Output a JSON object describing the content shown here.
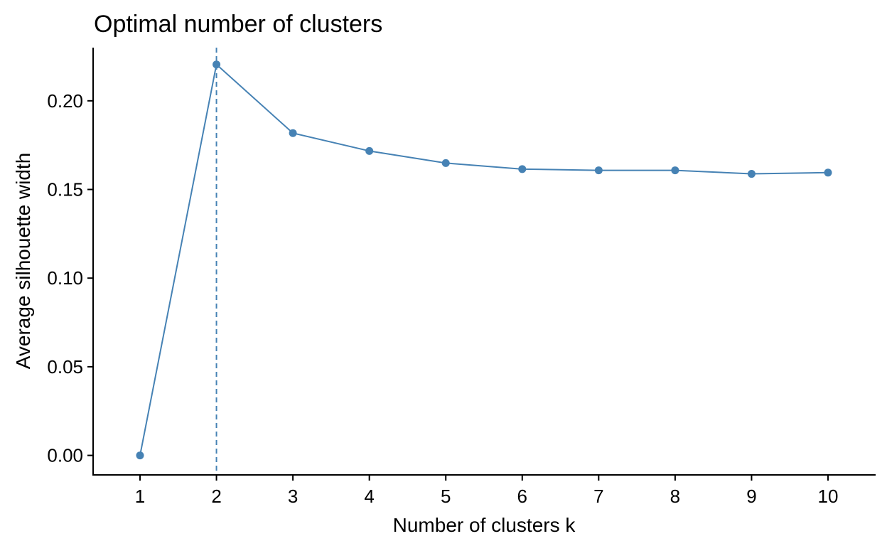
{
  "chart_data": {
    "type": "line",
    "title": "Optimal number of clusters",
    "xlabel": "Number of clusters k",
    "ylabel": "Average silhouette width",
    "categories": [
      "1",
      "2",
      "3",
      "4",
      "5",
      "6",
      "7",
      "8",
      "9",
      "10"
    ],
    "series": [
      {
        "values": [
          0.0,
          0.2205,
          0.1818,
          0.1717,
          0.1649,
          0.1615,
          0.1608,
          0.1608,
          0.1588,
          0.1595
        ],
        "color": "#4682B4"
      }
    ],
    "yticks": [
      0.0,
      0.05,
      0.1,
      0.15,
      0.2
    ],
    "ytick_labels": [
      "0.00",
      "0.05",
      "0.10",
      "0.15",
      "0.20"
    ],
    "ylim": [
      -0.011,
      0.23
    ],
    "optimal_k": 2,
    "optimal_line_style": "dashed",
    "grid": false,
    "legend": "none"
  }
}
